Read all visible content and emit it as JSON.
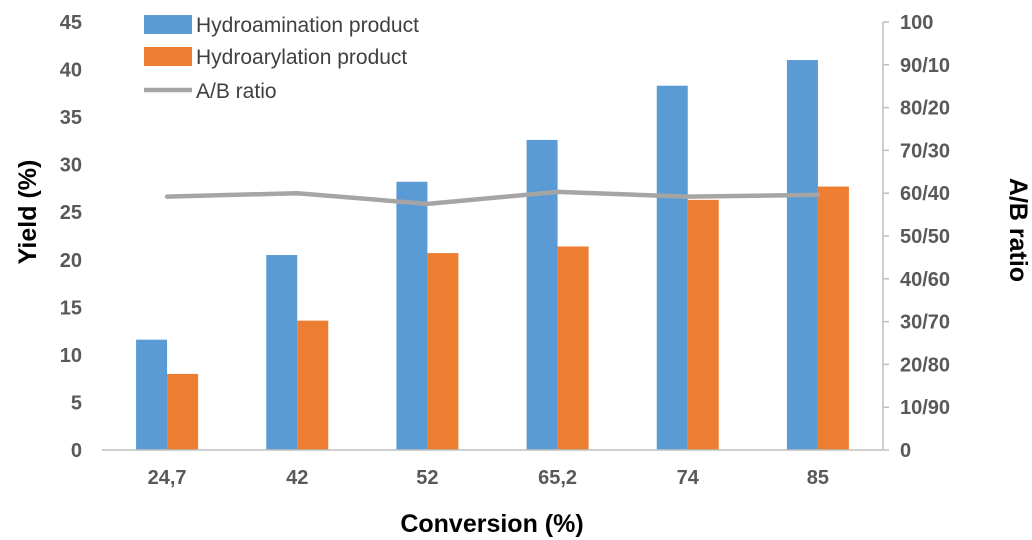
{
  "chart_data": {
    "type": "bar",
    "categories": [
      "24,7",
      "42",
      "52",
      "65,2",
      "74",
      "85"
    ],
    "series": [
      {
        "name": "Hydroamination product",
        "type": "bar",
        "axis": "left",
        "color": "#5B9BD5",
        "values": [
          11.6,
          20.5,
          28.2,
          32.6,
          38.3,
          41.0
        ]
      },
      {
        "name": "Hydroarylation product",
        "type": "bar",
        "axis": "left",
        "color": "#ED7D31",
        "values": [
          8.0,
          13.6,
          20.7,
          21.4,
          26.3,
          27.7
        ]
      },
      {
        "name": "A/B ratio",
        "type": "line",
        "axis": "right",
        "color": "#A5A5A5",
        "values": [
          59.2,
          60.0,
          57.5,
          60.3,
          59.2,
          59.6
        ]
      }
    ],
    "xlabel": "Conversion (%)",
    "ylabel": "Yield (%)",
    "y2label": "A/B ratio",
    "ylim": [
      0,
      45
    ],
    "yticks": [
      "0",
      "5",
      "10",
      "15",
      "20",
      "25",
      "30",
      "35",
      "40",
      "45"
    ],
    "y2lim": [
      0,
      100
    ],
    "y2ticks": [
      "0",
      "10/90",
      "20/80",
      "30/70",
      "40/60",
      "50/50",
      "60/40",
      "70/30",
      "80/20",
      "90/10",
      "100"
    ],
    "legend_position": "top-left",
    "grid": false
  }
}
